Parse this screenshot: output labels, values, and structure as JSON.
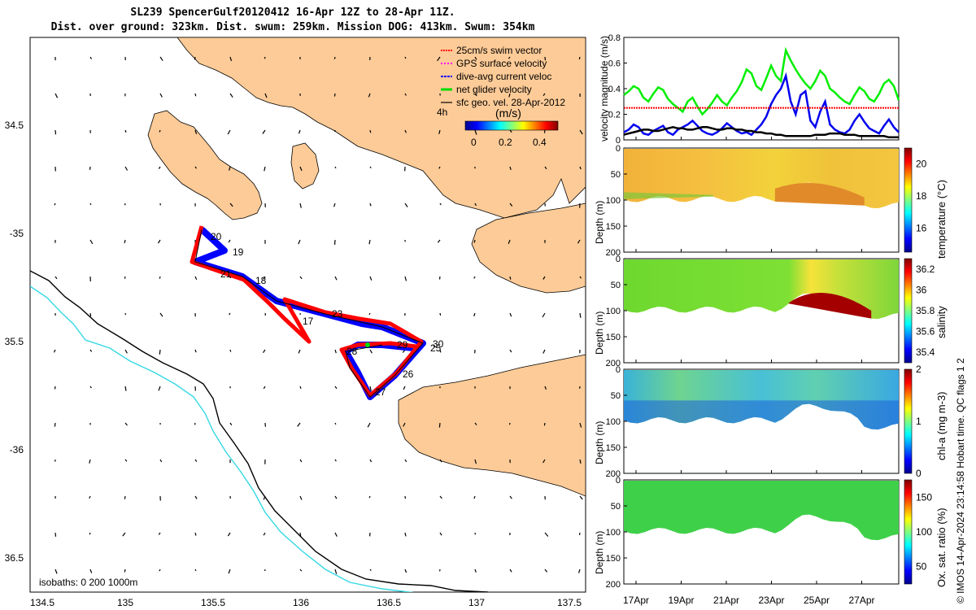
{
  "header": {
    "title_line1": "SL239 SpencerGulf20120412 16-Apr 12Z to 28-Apr 11Z.",
    "title_line2": "Dist. over ground: 323km. Dist. swum: 259km. Mission DOG: 413km. Swum: 354km"
  },
  "credit": "© IMOS 14-Apr-2024 23:14:58 Hobart time. QC flags 1  2",
  "map": {
    "legend": [
      {
        "label": "25cm/s swim vector",
        "color": "#ff0000"
      },
      {
        "label": "GPS surface velocity",
        "color": "#ff00ff"
      },
      {
        "label": "dive-avg current veloc",
        "color": "#0000ff"
      },
      {
        "label": "net glider velocity",
        "color": "#00dd00"
      },
      {
        "label": "sfc geo. vel. 28-Apr-2012",
        "color": "#000000"
      }
    ],
    "colorbar_prefix": "4h",
    "colorbar_unit": "(m/s)",
    "colorbar_ticks": [
      "0",
      "0.2",
      "0.4"
    ],
    "isobath_label": "isobaths: 0   200   1000m",
    "lon_ticks": [
      "134.5",
      "135",
      "135.5",
      "136",
      "136.5",
      "137",
      "137.5"
    ],
    "lat_ticks": [
      "34.5",
      "-35",
      "35.5",
      "-36",
      "36.5"
    ],
    "day_labels": [
      "20",
      "19",
      "21",
      "18",
      "17",
      "23",
      "28",
      "29",
      "30",
      "25",
      "26",
      "27"
    ],
    "colors": {
      "land": "#fdcb97",
      "isobath_200": "#000000",
      "isobath_1000": "#35d8e4"
    }
  },
  "chart_data": [
    {
      "type": "line",
      "ylabel": "velocity magnitude (m/s)",
      "ylim": [
        0,
        0.8
      ],
      "yticks": [
        "0",
        "0.2",
        "0.4",
        "0.6",
        "0.8"
      ],
      "series": [
        {
          "color": "#00ee00",
          "values": [
            0.35,
            0.38,
            0.42,
            0.4,
            0.33,
            0.3,
            0.36,
            0.41,
            0.39,
            0.32,
            0.28,
            0.25,
            0.22,
            0.3,
            0.33,
            0.26,
            0.2,
            0.24,
            0.29,
            0.35,
            0.3,
            0.27,
            0.33,
            0.38,
            0.45,
            0.55,
            0.52,
            0.42,
            0.39,
            0.48,
            0.58,
            0.5,
            0.46,
            0.7,
            0.62,
            0.55,
            0.49,
            0.44,
            0.4,
            0.46,
            0.54,
            0.5,
            0.4,
            0.37,
            0.33,
            0.3,
            0.28,
            0.35,
            0.41,
            0.38,
            0.32,
            0.3,
            0.36,
            0.44,
            0.47,
            0.42,
            0.31
          ]
        },
        {
          "color": "#0000ee",
          "values": [
            0.06,
            0.08,
            0.12,
            0.1,
            0.05,
            0.04,
            0.07,
            0.09,
            0.11,
            0.06,
            0.04,
            0.08,
            0.1,
            0.12,
            0.15,
            0.11,
            0.07,
            0.05,
            0.04,
            0.06,
            0.09,
            0.13,
            0.1,
            0.07,
            0.05,
            0.06,
            0.04,
            0.08,
            0.12,
            0.18,
            0.28,
            0.35,
            0.4,
            0.5,
            0.3,
            0.2,
            0.35,
            0.38,
            0.15,
            0.1,
            0.22,
            0.3,
            0.12,
            0.08,
            0.06,
            0.05,
            0.08,
            0.15,
            0.2,
            0.14,
            0.09,
            0.07,
            0.05,
            0.11,
            0.16,
            0.1,
            0.06
          ]
        },
        {
          "color": "#000000",
          "values": [
            0.04,
            0.05,
            0.06,
            0.07,
            0.08,
            0.08,
            0.07,
            0.07,
            0.08,
            0.09,
            0.1,
            0.09,
            0.09,
            0.08,
            0.08,
            0.09,
            0.1,
            0.1,
            0.09,
            0.08,
            0.08,
            0.09,
            0.09,
            0.08,
            0.08,
            0.07,
            0.07,
            0.06,
            0.06,
            0.05,
            0.05,
            0.04,
            0.04,
            0.03,
            0.03,
            0.03,
            0.03,
            0.03,
            0.03,
            0.04,
            0.04,
            0.04,
            0.05,
            0.05,
            0.05,
            0.04,
            0.04,
            0.04,
            0.03,
            0.03,
            0.03,
            0.03,
            0.03,
            0.03,
            0.02,
            0.02,
            0.02
          ]
        },
        {
          "color": "#ff0000",
          "values": [
            0.25,
            0.25,
            0.25,
            0.25,
            0.25,
            0.25,
            0.25,
            0.25,
            0.25,
            0.25,
            0.25,
            0.25,
            0.25,
            0.25,
            0.25,
            0.25,
            0.25,
            0.25,
            0.25,
            0.25,
            0.25,
            0.25,
            0.25,
            0.25,
            0.25,
            0.25,
            0.25,
            0.25,
            0.25,
            0.25,
            0.25,
            0.25,
            0.25,
            0.25,
            0.25,
            0.25,
            0.25,
            0.25,
            0.25,
            0.25,
            0.25,
            0.25,
            0.25,
            0.25,
            0.25,
            0.25,
            0.25,
            0.25,
            0.25,
            0.25,
            0.25,
            0.25,
            0.25,
            0.25,
            0.25,
            0.25,
            0.25
          ]
        }
      ]
    },
    {
      "type": "heatmap",
      "ylabel": "Depth (m)",
      "ylim": [
        200,
        0
      ],
      "yticks": [
        "0",
        "50",
        "100",
        "150",
        "200"
      ],
      "colorbar_label": "temperature (°C)",
      "colorbar_ticks": [
        "16",
        "18",
        "20"
      ],
      "colorbar_range": [
        14.5,
        21
      ]
    },
    {
      "type": "heatmap",
      "ylabel": "Depth (m)",
      "ylim": [
        200,
        0
      ],
      "yticks": [
        "0",
        "50",
        "100",
        "150",
        "200"
      ],
      "colorbar_label": "salinity",
      "colorbar_ticks": [
        "35.4",
        "35.6",
        "35.8",
        "36",
        "36.2"
      ],
      "colorbar_range": [
        35.3,
        36.3
      ]
    },
    {
      "type": "heatmap",
      "ylabel": "Depth (m)",
      "ylim": [
        200,
        0
      ],
      "yticks": [
        "0",
        "50",
        "100",
        "150",
        "200"
      ],
      "colorbar_label": "chl-a (mg m-3)",
      "colorbar_ticks": [
        "0",
        "1",
        "2"
      ],
      "colorbar_range": [
        0,
        2
      ]
    },
    {
      "type": "heatmap",
      "ylabel": "Depth (m)",
      "ylim": [
        200,
        0
      ],
      "yticks": [
        "0",
        "50",
        "100",
        "150",
        "200"
      ],
      "colorbar_label": "Ox. sat. ratio (%)",
      "colorbar_ticks": [
        "50",
        "100",
        "150"
      ],
      "colorbar_range": [
        25,
        175
      ]
    }
  ],
  "time_axis": {
    "ticks": [
      "17Apr",
      "19Apr",
      "21Apr",
      "23Apr",
      "25Apr",
      "27Apr"
    ]
  }
}
